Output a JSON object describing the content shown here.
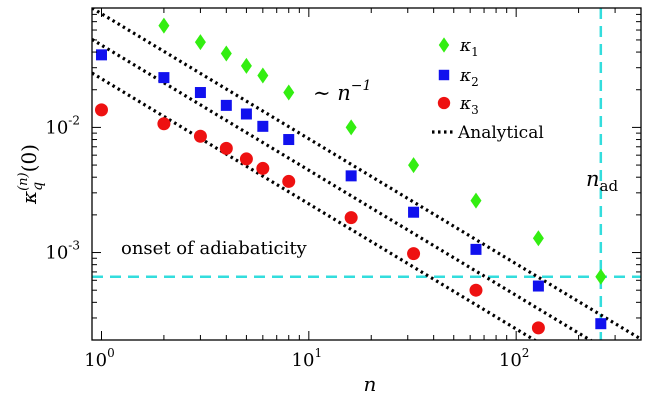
{
  "chart_data": {
    "type": "scatter",
    "xscale": "log",
    "yscale": "log",
    "xlim": [
      0.9,
      400
    ],
    "ylim": [
      0.0002,
      0.09
    ],
    "xlabel": "n",
    "ylabel": "κ_q^(n)(0)",
    "grid": false,
    "legend_position": "top-right",
    "x_ticks": [
      {
        "value": 1,
        "base": "10",
        "exp": "0"
      },
      {
        "value": 10,
        "base": "10",
        "exp": "1"
      },
      {
        "value": 100,
        "base": "10",
        "exp": "2"
      }
    ],
    "y_ticks": [
      {
        "value": 0.001,
        "base": "10",
        "exp": "-3"
      },
      {
        "value": 0.01,
        "base": "10",
        "exp": "-2"
      }
    ],
    "series": [
      {
        "name": "κ1",
        "marker": "diamond",
        "color": "#33ee11",
        "points": [
          [
            2,
            0.065
          ],
          [
            3,
            0.048
          ],
          [
            4,
            0.039
          ],
          [
            5,
            0.031
          ],
          [
            6,
            0.026
          ],
          [
            8,
            0.019
          ],
          [
            16,
            0.01
          ],
          [
            32,
            0.005
          ],
          [
            64,
            0.0026
          ],
          [
            128,
            0.0013
          ],
          [
            256,
            0.00064
          ]
        ]
      },
      {
        "name": "κ2",
        "marker": "square",
        "color": "#1111ee",
        "points": [
          [
            1,
            0.038
          ],
          [
            2,
            0.025
          ],
          [
            3,
            0.019
          ],
          [
            4,
            0.015
          ],
          [
            5,
            0.0128
          ],
          [
            6,
            0.0102
          ],
          [
            8,
            0.008
          ],
          [
            16,
            0.0041
          ],
          [
            32,
            0.0021
          ],
          [
            64,
            0.00106
          ],
          [
            128,
            0.00054
          ],
          [
            256,
            0.00027
          ]
        ]
      },
      {
        "name": "κ3",
        "marker": "circle",
        "color": "#ee1111",
        "points": [
          [
            1,
            0.0138
          ],
          [
            2,
            0.0107
          ],
          [
            3,
            0.0085
          ],
          [
            4,
            0.0068
          ],
          [
            5,
            0.0056
          ],
          [
            6,
            0.0047
          ],
          [
            8,
            0.0037
          ],
          [
            16,
            0.0019
          ],
          [
            32,
            0.00098
          ],
          [
            64,
            0.0005
          ],
          [
            128,
            0.00025
          ]
        ]
      }
    ],
    "analytical_lines": [
      {
        "x": [
          0.9,
          400
        ],
        "y": [
          0.09,
          0.000203
        ]
      },
      {
        "x": [
          0.9,
          400
        ],
        "y": [
          0.0505,
          0.0001136
        ]
      },
      {
        "x": [
          0.9,
          400
        ],
        "y": [
          0.0272,
          6.12e-05
        ]
      }
    ],
    "legend": [
      {
        "symbol": "κ",
        "sub": "1",
        "marker": "diamond",
        "color": "#33ee11"
      },
      {
        "symbol": "κ",
        "sub": "2",
        "marker": "square",
        "color": "#1111ee"
      },
      {
        "symbol": "κ",
        "sub": "3",
        "marker": "circle",
        "color": "#ee1111"
      },
      {
        "label": "Analytical",
        "marker": "dotted-line",
        "color": "#000000"
      }
    ],
    "reference_lines": {
      "vertical_x": 256,
      "horizontal_y": 0.00064,
      "color": "#33dddd"
    },
    "annotations": {
      "scaling": {
        "prefix": "∼ n",
        "exp": "−1"
      },
      "nad": {
        "base": "n",
        "sub": "ad"
      },
      "onset": "onset of adiabaticity"
    }
  }
}
